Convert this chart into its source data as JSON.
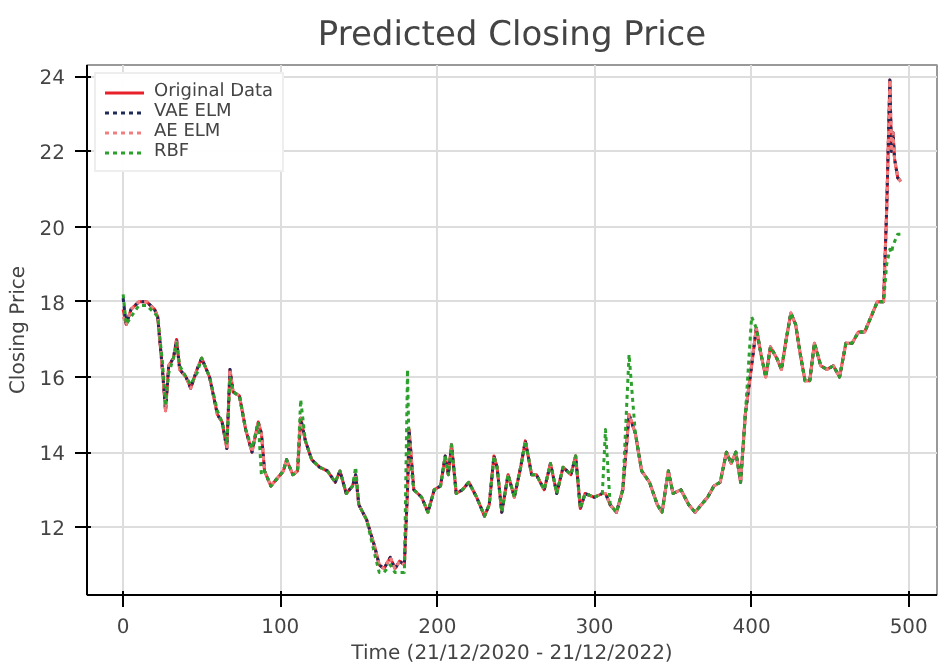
{
  "chart_data": {
    "type": "line",
    "title": "Predicted Closing Price",
    "xlabel": "Time (21/12/2020 - 21/12/2022)",
    "ylabel": "Closing Price",
    "x": [
      0,
      2,
      5,
      10,
      15,
      20,
      22,
      25,
      27,
      29,
      32,
      34,
      36,
      40,
      43,
      47,
      50,
      55,
      60,
      63,
      66,
      68,
      70,
      74,
      78,
      82,
      86,
      88,
      90,
      94,
      98,
      102,
      104,
      108,
      111,
      113,
      116,
      120,
      125,
      130,
      135,
      138,
      142,
      146,
      148,
      150,
      155,
      160,
      163,
      166,
      170,
      173,
      176,
      179,
      181,
      182,
      185,
      190,
      194,
      198,
      202,
      205,
      207,
      209,
      212,
      216,
      220,
      225,
      230,
      233,
      236,
      238,
      241,
      245,
      249,
      253,
      256,
      260,
      263,
      268,
      272,
      276,
      280,
      285,
      288,
      291,
      294,
      300,
      305,
      307,
      310,
      314,
      318,
      322,
      326,
      330,
      335,
      340,
      343,
      347,
      350,
      355,
      360,
      364,
      368,
      372,
      376,
      380,
      384,
      387,
      390,
      393,
      396,
      400,
      403,
      406,
      409,
      412,
      416,
      419,
      422,
      425,
      428,
      431,
      434,
      437,
      440,
      444,
      448,
      452,
      456,
      460,
      464,
      468,
      472,
      476,
      480,
      484,
      486,
      488,
      489,
      490,
      491,
      493,
      495
    ],
    "series": [
      {
        "name": "Original Data",
        "color": "#e8202a",
        "line_style": "solid",
        "values": [
          17.8,
          17.4,
          17.8,
          18.0,
          18.0,
          17.8,
          17.6,
          16.2,
          15.1,
          16.3,
          16.5,
          17.0,
          16.2,
          16.0,
          15.7,
          16.2,
          16.5,
          16.0,
          15.0,
          14.8,
          14.1,
          16.2,
          15.6,
          15.5,
          14.6,
          14.0,
          14.8,
          14.5,
          13.5,
          13.1,
          13.3,
          13.5,
          13.8,
          13.4,
          13.5,
          14.9,
          14.3,
          13.8,
          13.6,
          13.5,
          13.2,
          13.5,
          12.9,
          13.1,
          13.4,
          12.6,
          12.2,
          11.5,
          11.0,
          10.9,
          11.2,
          10.9,
          11.1,
          11.0,
          13.0,
          14.6,
          13.0,
          12.8,
          12.4,
          13.0,
          13.1,
          13.9,
          13.4,
          14.2,
          12.9,
          13.0,
          13.2,
          12.8,
          12.3,
          12.6,
          13.9,
          13.6,
          12.4,
          13.4,
          12.8,
          13.6,
          14.3,
          13.4,
          13.4,
          13.0,
          13.7,
          12.9,
          13.6,
          13.4,
          13.9,
          12.5,
          12.9,
          12.8,
          12.9,
          12.9,
          12.6,
          12.4,
          13.0,
          15.0,
          14.5,
          13.5,
          13.2,
          12.6,
          12.4,
          13.5,
          12.9,
          13.0,
          12.6,
          12.4,
          12.6,
          12.8,
          13.1,
          13.2,
          14.0,
          13.7,
          14.0,
          13.2,
          15.0,
          16.3,
          17.3,
          16.6,
          16.0,
          16.8,
          16.5,
          16.2,
          17.0,
          17.7,
          17.4,
          16.6,
          15.9,
          15.9,
          16.9,
          16.3,
          16.2,
          16.3,
          16.0,
          16.9,
          16.9,
          17.2,
          17.2,
          17.6,
          18.0,
          18.0,
          20.5,
          23.9,
          22.0,
          22.5,
          21.8,
          21.3,
          21.2
        ]
      },
      {
        "name": "VAE ELM",
        "color": "#1f2a5a",
        "line_style": "dotted",
        "values": [
          18.1,
          17.4,
          17.8,
          18.0,
          18.0,
          17.8,
          17.6,
          16.2,
          15.1,
          16.3,
          16.5,
          17.0,
          16.2,
          16.0,
          15.7,
          16.2,
          16.5,
          16.0,
          15.0,
          14.8,
          14.1,
          16.2,
          15.6,
          15.5,
          14.6,
          14.0,
          14.8,
          14.5,
          13.5,
          13.1,
          13.3,
          13.5,
          13.8,
          13.4,
          13.5,
          14.9,
          14.3,
          13.8,
          13.6,
          13.5,
          13.2,
          13.5,
          12.9,
          13.1,
          13.4,
          12.6,
          12.2,
          11.5,
          11.0,
          10.9,
          11.2,
          10.9,
          11.1,
          11.0,
          13.0,
          14.6,
          13.0,
          12.8,
          12.4,
          13.0,
          13.1,
          13.9,
          13.4,
          14.2,
          12.9,
          13.0,
          13.2,
          12.8,
          12.3,
          12.6,
          13.9,
          13.6,
          12.4,
          13.4,
          12.8,
          13.6,
          14.3,
          13.4,
          13.4,
          13.0,
          13.7,
          12.9,
          13.6,
          13.4,
          13.9,
          12.5,
          12.9,
          12.8,
          12.9,
          12.9,
          12.6,
          12.4,
          13.0,
          15.0,
          14.5,
          13.5,
          13.2,
          12.6,
          12.4,
          13.5,
          12.9,
          13.0,
          12.6,
          12.4,
          12.6,
          12.8,
          13.1,
          13.2,
          14.0,
          13.7,
          14.0,
          13.2,
          15.0,
          16.3,
          17.3,
          16.6,
          16.0,
          16.8,
          16.5,
          16.2,
          17.0,
          17.7,
          17.4,
          16.6,
          15.9,
          15.9,
          16.9,
          16.3,
          16.2,
          16.3,
          16.0,
          16.9,
          16.9,
          17.2,
          17.2,
          17.6,
          18.0,
          18.0,
          20.5,
          23.9,
          22.0,
          22.5,
          21.8,
          21.3,
          21.2
        ]
      },
      {
        "name": "AE ELM",
        "color": "#f08080",
        "line_style": "dotted",
        "values": [
          17.6,
          17.4,
          17.8,
          18.0,
          18.0,
          17.8,
          17.6,
          16.2,
          15.1,
          16.3,
          16.5,
          17.0,
          16.2,
          16.0,
          15.7,
          16.2,
          16.5,
          16.0,
          15.0,
          14.8,
          14.1,
          16.2,
          15.6,
          15.5,
          14.6,
          14.0,
          14.8,
          14.5,
          13.5,
          13.1,
          13.3,
          13.5,
          13.8,
          13.4,
          13.5,
          14.9,
          14.3,
          13.8,
          13.6,
          13.5,
          13.2,
          13.5,
          12.9,
          13.1,
          13.4,
          12.6,
          12.2,
          11.5,
          11.0,
          10.9,
          11.2,
          10.9,
          11.1,
          11.0,
          13.0,
          14.6,
          13.0,
          12.8,
          12.4,
          13.0,
          13.1,
          13.9,
          13.4,
          14.2,
          12.9,
          13.0,
          13.2,
          12.8,
          12.3,
          12.6,
          13.9,
          13.6,
          12.4,
          13.4,
          12.8,
          13.6,
          14.3,
          13.4,
          13.4,
          13.0,
          13.7,
          12.9,
          13.6,
          13.4,
          13.9,
          12.5,
          12.9,
          12.8,
          12.9,
          12.9,
          12.6,
          12.4,
          13.0,
          15.0,
          14.5,
          13.5,
          13.2,
          12.6,
          12.4,
          13.5,
          12.9,
          13.0,
          12.6,
          12.4,
          12.6,
          12.8,
          13.1,
          13.2,
          14.0,
          13.7,
          14.0,
          13.2,
          15.0,
          16.3,
          17.3,
          16.6,
          16.0,
          16.8,
          16.5,
          16.2,
          17.0,
          17.7,
          17.4,
          16.6,
          15.9,
          15.9,
          16.9,
          16.3,
          16.2,
          16.3,
          16.0,
          16.9,
          16.9,
          17.2,
          17.2,
          17.6,
          18.0,
          18.0,
          20.5,
          23.9,
          22.0,
          22.5,
          21.8,
          21.3,
          21.2
        ]
      },
      {
        "name": "RBF",
        "color": "#2ca02c",
        "line_style": "dotted",
        "values": [
          18.2,
          17.4,
          17.6,
          17.9,
          17.9,
          17.7,
          17.6,
          16.4,
          15.3,
          16.1,
          16.5,
          16.9,
          16.3,
          16.0,
          15.8,
          16.1,
          16.5,
          16.0,
          15.1,
          14.8,
          14.2,
          16.0,
          15.6,
          15.5,
          14.6,
          14.1,
          14.8,
          13.4,
          13.5,
          13.1,
          13.3,
          13.5,
          13.8,
          13.4,
          13.5,
          15.4,
          14.3,
          13.8,
          13.6,
          13.5,
          13.2,
          13.5,
          12.9,
          13.1,
          13.6,
          12.6,
          12.2,
          11.3,
          10.8,
          10.8,
          11.0,
          10.8,
          10.8,
          10.8,
          16.2,
          14.0,
          13.0,
          12.8,
          12.4,
          13.0,
          13.1,
          13.9,
          13.4,
          14.2,
          12.9,
          13.0,
          13.2,
          12.8,
          12.3,
          12.6,
          13.9,
          13.6,
          12.4,
          13.4,
          12.8,
          13.6,
          14.3,
          13.4,
          13.4,
          13.0,
          13.7,
          12.9,
          13.6,
          13.4,
          13.9,
          12.5,
          12.9,
          12.8,
          12.9,
          14.6,
          12.6,
          12.4,
          13.0,
          16.6,
          14.5,
          13.5,
          13.2,
          12.6,
          12.4,
          13.5,
          12.9,
          13.0,
          12.6,
          12.4,
          12.6,
          12.8,
          13.1,
          13.2,
          14.0,
          13.7,
          14.0,
          13.2,
          15.0,
          17.6,
          17.3,
          16.6,
          16.0,
          16.8,
          16.5,
          16.2,
          17.0,
          17.7,
          17.4,
          16.6,
          15.9,
          15.9,
          16.9,
          16.3,
          16.2,
          16.3,
          16.0,
          16.9,
          16.9,
          17.2,
          17.2,
          17.6,
          18.0,
          18.0,
          19.0,
          19.4,
          19.3,
          19.5,
          19.6,
          19.8,
          19.8
        ]
      }
    ],
    "xlim": [
      -23,
      518
    ],
    "ylim": [
      10.2,
      24.3
    ],
    "xticks": [
      0,
      100,
      200,
      300,
      400,
      500
    ],
    "yticks": [
      12,
      14,
      16,
      18,
      20,
      22,
      24
    ],
    "grid": true,
    "legend": "top left"
  }
}
